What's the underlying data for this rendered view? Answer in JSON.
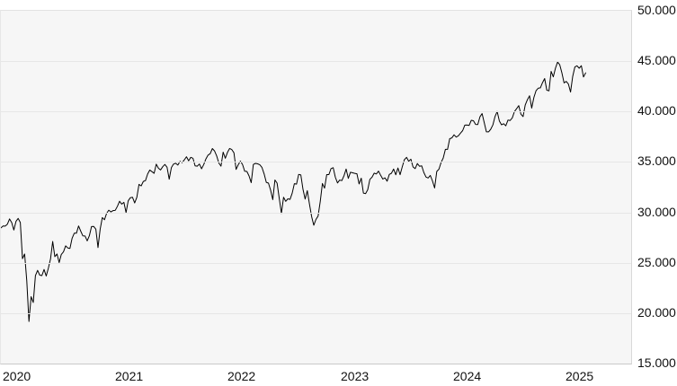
{
  "chart_data": {
    "type": "line",
    "title": "",
    "subtitle": "",
    "legend": "none",
    "grid": "horizontal-only",
    "page_bg": "#ffffff",
    "plot_bg": "#f6f6f6",
    "grid_color": "#e6e6e6",
    "axis_line_color": "#c9c9c9",
    "line_color": "#000000",
    "label_color": "#111111",
    "y_axis_side": "right",
    "x_axis_side": "bottom",
    "ylim": [
      15000,
      50000
    ],
    "xlim_years": [
      2019.976,
      2025.574
    ],
    "y_tick_values": [
      50000,
      45000,
      40000,
      35000,
      30000,
      25000,
      20000,
      15000
    ],
    "y_tick_labels": [
      "50.000",
      "45.000",
      "40.000",
      "35.000",
      "30.000",
      "25.000",
      "20.000",
      "15.000"
    ],
    "x_tick_years": [
      2020,
      2021,
      2022,
      2023,
      2024,
      2025
    ],
    "x_tick_labels": [
      "2020",
      "2021",
      "2022",
      "2023",
      "2024",
      "2025"
    ],
    "series": [
      {
        "name": "index-price",
        "sampling": "weekly-close",
        "x_start_year": 2019.976,
        "x_step_days": 7,
        "values": [
          28455,
          28645,
          28635,
          28824,
          29348,
          28990,
          28256,
          29103,
          29398,
          28992,
          25409,
          25865,
          23186,
          19174,
          21637,
          21053,
          23719,
          24242,
          23775,
          23724,
          24331,
          23685,
          24465,
          25383,
          27111,
          25606,
          25871,
          25016,
          25827,
          26075,
          26672,
          26470,
          26428,
          27433,
          27931,
          27930,
          28654,
          28133,
          27666,
          27657,
          27174,
          27683,
          28587,
          28606,
          28336,
          26502,
          28323,
          29480,
          29263,
          29910,
          30218,
          30046,
          30179,
          30200,
          30606,
          31098,
          30814,
          30997,
          29983,
          31148,
          31458,
          31494,
          30932,
          31496,
          32779,
          32628,
          33073,
          33153,
          33801,
          34201,
          34043,
          33875,
          34778,
          34382,
          34208,
          34529,
          34756,
          34480,
          33290,
          34434,
          34786,
          34870,
          34688,
          35062,
          34935,
          35209,
          35515,
          35120,
          35456,
          35369,
          34608,
          34585,
          34798,
          34326,
          34746,
          35295,
          35677,
          35820,
          36328,
          36100,
          35602,
          34899,
          34580,
          35971,
          35365,
          35950,
          36338,
          36232,
          35912,
          34265,
          34725,
          35090,
          34738,
          34079,
          34059,
          33615,
          32944,
          34755,
          34861,
          34818,
          34721,
          34451,
          33811,
          32977,
          32899,
          32197,
          31262,
          33213,
          32900,
          31393,
          29889,
          31500,
          31097,
          31338,
          31288,
          31899,
          32845,
          32803,
          33761,
          33707,
          32283,
          31318,
          32152,
          30822,
          29590,
          28726,
          29297,
          29635,
          31083,
          32862,
          32403,
          33748,
          33746,
          34347,
          34430,
          33476,
          32920,
          33204,
          33147,
          33631,
          34303,
          33375,
          33978,
          33926,
          33869,
          33827,
          32817,
          33391,
          31910,
          31862,
          32238,
          33274,
          33485,
          33886,
          33809,
          34098,
          33674,
          33301,
          33427,
          33093,
          33763,
          33877,
          34299,
          33727,
          34408,
          33735,
          34509,
          35228,
          35459,
          35066,
          35281,
          34501,
          34347,
          34838,
          34577,
          34618,
          33964,
          33508,
          33408,
          33670,
          33127,
          32418,
          34061,
          34283,
          34947,
          35390,
          36245,
          36248,
          37305,
          37386,
          37690,
          37466,
          37593,
          37864,
          38109,
          38654,
          38672,
          38628,
          39132,
          39087,
          38723,
          38715,
          39476,
          39807,
          38904,
          37983,
          37986,
          38240,
          38676,
          39513,
          40004,
          39070,
          38686,
          38799,
          38589,
          39150,
          39119,
          39376,
          40001,
          40288,
          40589,
          39737,
          39498,
          40660,
          41175,
          41563,
          40345,
          41394,
          42063,
          42313,
          42353,
          42864,
          43276,
          42114,
          42052,
          43989,
          43445,
          44297,
          44911,
          44643,
          43828,
          42840,
          42992,
          42732,
          41938,
          43488,
          44424,
          44545,
          44303,
          44546,
          43428,
          43841
        ]
      }
    ]
  }
}
